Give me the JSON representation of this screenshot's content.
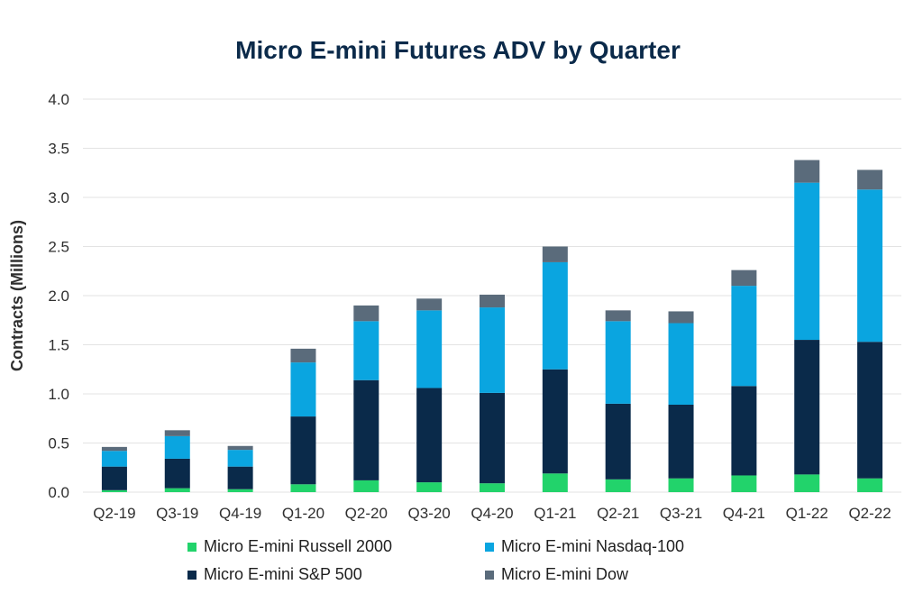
{
  "chart_data": {
    "type": "bar",
    "stacked": true,
    "title": "Micro E-mini Futures ADV by Quarter",
    "ylabel": "Contracts  (Millions)",
    "xlabel": "",
    "ylim": [
      0,
      4.0
    ],
    "yticks": [
      "0.0",
      "0.5",
      "1.0",
      "1.5",
      "2.0",
      "2.5",
      "3.0",
      "3.5",
      "4.0"
    ],
    "grid": true,
    "legend_position": "bottom",
    "categories": [
      "Q2-19",
      "Q3-19",
      "Q4-19",
      "Q1-20",
      "Q2-20",
      "Q3-20",
      "Q4-20",
      "Q1-21",
      "Q2-21",
      "Q3-21",
      "Q4-21",
      "Q1-22",
      "Q2-22"
    ],
    "series": [
      {
        "name": "Micro E-mini Russell 2000",
        "color": "#22d36b",
        "values": [
          0.02,
          0.04,
          0.03,
          0.08,
          0.12,
          0.1,
          0.09,
          0.19,
          0.13,
          0.14,
          0.17,
          0.18,
          0.14
        ]
      },
      {
        "name": "Micro E-mini S&P 500",
        "color": "#0a2a4a",
        "values": [
          0.24,
          0.3,
          0.23,
          0.69,
          1.02,
          0.96,
          0.92,
          1.06,
          0.77,
          0.75,
          0.91,
          1.37,
          1.39
        ]
      },
      {
        "name": "Micro E-mini Nasdaq-100",
        "color": "#0aa5e0",
        "values": [
          0.16,
          0.23,
          0.17,
          0.55,
          0.6,
          0.79,
          0.87,
          1.09,
          0.84,
          0.83,
          1.02,
          1.6,
          1.55
        ]
      },
      {
        "name": "Micro E-mini Dow",
        "color": "#5a6b7b",
        "values": [
          0.04,
          0.06,
          0.04,
          0.14,
          0.16,
          0.12,
          0.13,
          0.16,
          0.11,
          0.12,
          0.16,
          0.23,
          0.2
        ]
      }
    ]
  },
  "legend_order": [
    0,
    2,
    1,
    3
  ]
}
